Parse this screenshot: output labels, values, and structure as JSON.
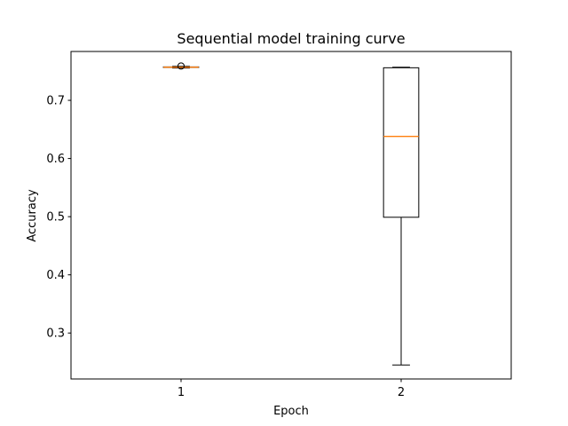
{
  "chart_data": {
    "type": "box",
    "title": "Sequential model training curve",
    "xlabel": "Epoch",
    "ylabel": "Accuracy",
    "categories": [
      "1",
      "2"
    ],
    "ylim": [
      0.221,
      0.784
    ],
    "yticks": [
      0.3,
      0.4,
      0.5,
      0.6,
      0.7
    ],
    "ytick_labels": [
      "0.3",
      "0.4",
      "0.5",
      "0.6",
      "0.7"
    ],
    "grid": false,
    "boxes": [
      {
        "category": "1",
        "whisker_low": 0.7555,
        "q1": 0.7565,
        "median": 0.757,
        "q3": 0.7575,
        "whisker_high": 0.7585,
        "outliers": [
          0.759
        ]
      },
      {
        "category": "2",
        "whisker_low": 0.245,
        "q1": 0.499,
        "median": 0.638,
        "q3": 0.756,
        "whisker_high": 0.757,
        "outliers": []
      }
    ],
    "colors": {
      "box": "#000000",
      "median": "#ff7f0e",
      "background": "#ffffff"
    }
  }
}
